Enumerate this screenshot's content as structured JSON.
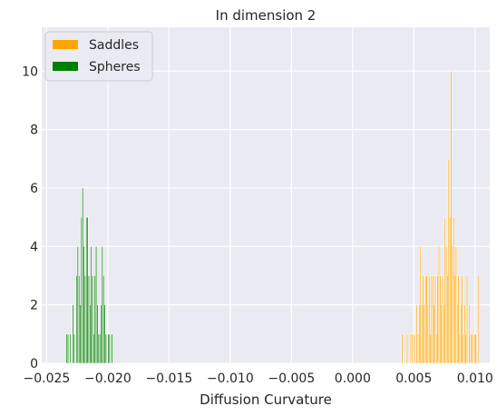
{
  "chart_data": {
    "type": "bar",
    "title": "In dimension 2",
    "xlabel": "Diffusion Curvature",
    "ylabel": "",
    "xlim": [
      -0.0254,
      0.0112
    ],
    "ylim": [
      0,
      11.5
    ],
    "xticks": [
      -0.025,
      -0.02,
      -0.015,
      -0.01,
      -0.005,
      0.0,
      0.005,
      0.01
    ],
    "xtick_labels": [
      "−0.025",
      "−0.020",
      "−0.015",
      "−0.010",
      "−0.005",
      "0.000",
      "0.005",
      "0.010"
    ],
    "yticks": [
      0,
      2,
      4,
      6,
      8,
      10
    ],
    "ytick_labels": [
      "0",
      "2",
      "4",
      "6",
      "8",
      "10"
    ],
    "grid": true,
    "legend_position": "top-left",
    "background": "#eaeaf2",
    "series": [
      {
        "name": "Saddles",
        "color": "#ffa500",
        "bin_width": 0.0001,
        "bins": [
          [
            0.004,
            1
          ],
          [
            0.0044,
            1
          ],
          [
            0.0047,
            1
          ],
          [
            0.0048,
            1
          ],
          [
            0.005,
            1
          ],
          [
            0.0052,
            2
          ],
          [
            0.0053,
            1
          ],
          [
            0.0054,
            2
          ],
          [
            0.0055,
            4
          ],
          [
            0.0056,
            2
          ],
          [
            0.0057,
            3
          ],
          [
            0.0058,
            2
          ],
          [
            0.0059,
            3
          ],
          [
            0.006,
            3
          ],
          [
            0.0061,
            2
          ],
          [
            0.0062,
            3
          ],
          [
            0.0063,
            1
          ],
          [
            0.0064,
            3
          ],
          [
            0.0065,
            3
          ],
          [
            0.0066,
            2
          ],
          [
            0.0067,
            3
          ],
          [
            0.0068,
            1
          ],
          [
            0.0069,
            3
          ],
          [
            0.007,
            4
          ],
          [
            0.0071,
            3
          ],
          [
            0.0072,
            2
          ],
          [
            0.0073,
            3
          ],
          [
            0.0074,
            2
          ],
          [
            0.0075,
            5
          ],
          [
            0.0076,
            4
          ],
          [
            0.0077,
            3
          ],
          [
            0.0078,
            7
          ],
          [
            0.0079,
            5
          ],
          [
            0.008,
            10
          ],
          [
            0.0081,
            4
          ],
          [
            0.0082,
            5
          ],
          [
            0.0083,
            3
          ],
          [
            0.0084,
            4
          ],
          [
            0.0085,
            2
          ],
          [
            0.0086,
            3
          ],
          [
            0.0087,
            1
          ],
          [
            0.0088,
            2
          ],
          [
            0.0089,
            3
          ],
          [
            0.009,
            1
          ],
          [
            0.0091,
            2
          ],
          [
            0.0092,
            1
          ],
          [
            0.0093,
            3
          ],
          [
            0.0095,
            2
          ],
          [
            0.0096,
            1
          ],
          [
            0.0097,
            1
          ],
          [
            0.0099,
            1
          ],
          [
            0.01,
            1
          ],
          [
            0.0102,
            3
          ]
        ]
      },
      {
        "name": "Spheres",
        "color": "#008000",
        "bin_width": 0.0001,
        "bins": [
          [
            -0.0234,
            1
          ],
          [
            -0.0233,
            1
          ],
          [
            -0.0231,
            1
          ],
          [
            -0.0229,
            2
          ],
          [
            -0.0228,
            1
          ],
          [
            -0.0226,
            3
          ],
          [
            -0.0225,
            4
          ],
          [
            -0.0224,
            3
          ],
          [
            -0.0223,
            2
          ],
          [
            -0.0222,
            5
          ],
          [
            -0.0221,
            6
          ],
          [
            -0.022,
            4
          ],
          [
            -0.0219,
            3
          ],
          [
            -0.0218,
            5
          ],
          [
            -0.0217,
            5
          ],
          [
            -0.0216,
            3
          ],
          [
            -0.0215,
            2
          ],
          [
            -0.0214,
            4
          ],
          [
            -0.0213,
            3
          ],
          [
            -0.0212,
            1
          ],
          [
            -0.0211,
            3
          ],
          [
            -0.021,
            4
          ],
          [
            -0.0209,
            2
          ],
          [
            -0.0208,
            1
          ],
          [
            -0.0207,
            1
          ],
          [
            -0.0206,
            2
          ],
          [
            -0.0205,
            4
          ],
          [
            -0.0204,
            3
          ],
          [
            -0.0203,
            2
          ],
          [
            -0.0202,
            1
          ],
          [
            -0.02,
            1
          ],
          [
            -0.0199,
            1
          ],
          [
            -0.0197,
            1
          ]
        ]
      }
    ]
  }
}
